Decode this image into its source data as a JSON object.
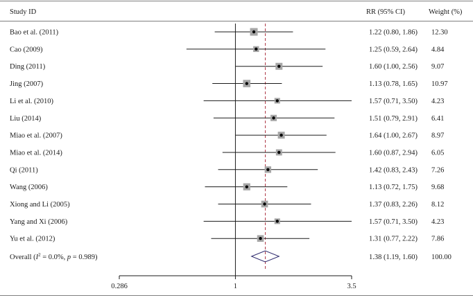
{
  "chart_data": {
    "type": "forest",
    "headers": {
      "study": "Study ID",
      "rr": "RR (95% CI)",
      "weight": "Weight (%)"
    },
    "x_scale": "log",
    "xlim": [
      0.286,
      3.5
    ],
    "x_ticks": [
      {
        "value": 0.286,
        "label": "0.286"
      },
      {
        "value": 1,
        "label": "1"
      },
      {
        "value": 3.5,
        "label": "3.5"
      }
    ],
    "null_line": 1,
    "pooled_line": 1.38,
    "studies": [
      {
        "label": "Bao et al. (2011)",
        "rr": 1.22,
        "lo": 0.8,
        "hi": 1.86,
        "rr_text": "1.22 (0.80, 1.86)",
        "weight": 12.3,
        "weight_text": "12.30"
      },
      {
        "label": "Cao (2009)",
        "rr": 1.25,
        "lo": 0.59,
        "hi": 2.64,
        "rr_text": "1.25 (0.59, 2.64)",
        "weight": 4.84,
        "weight_text": "4.84"
      },
      {
        "label": "Ding (2011)",
        "rr": 1.6,
        "lo": 1.0,
        "hi": 2.56,
        "rr_text": "1.60 (1.00, 2.56)",
        "weight": 9.07,
        "weight_text": "9.07"
      },
      {
        "label": "Jing (2007)",
        "rr": 1.13,
        "lo": 0.78,
        "hi": 1.65,
        "rr_text": "1.13 (0.78, 1.65)",
        "weight": 10.97,
        "weight_text": "10.97"
      },
      {
        "label": "Li et al. (2010)",
        "rr": 1.57,
        "lo": 0.71,
        "hi": 3.5,
        "rr_text": "1.57 (0.71, 3.50)",
        "weight": 4.23,
        "weight_text": "4.23"
      },
      {
        "label": "Liu (2014)",
        "rr": 1.51,
        "lo": 0.79,
        "hi": 2.91,
        "rr_text": "1.51 (0.79, 2.91)",
        "weight": 6.41,
        "weight_text": "6.41"
      },
      {
        "label": "Miao et al. (2007)",
        "rr": 1.64,
        "lo": 1.0,
        "hi": 2.67,
        "rr_text": "1.64 (1.00, 2.67)",
        "weight": 8.97,
        "weight_text": "8.97"
      },
      {
        "label": "Miao et al. (2014)",
        "rr": 1.6,
        "lo": 0.87,
        "hi": 2.94,
        "rr_text": "1.60 (0.87, 2.94)",
        "weight": 6.05,
        "weight_text": "6.05"
      },
      {
        "label": "Qi (2011)",
        "rr": 1.42,
        "lo": 0.83,
        "hi": 2.43,
        "rr_text": "1.42 (0.83, 2.43)",
        "weight": 7.26,
        "weight_text": "7.26"
      },
      {
        "label": "Wang (2006)",
        "rr": 1.13,
        "lo": 0.72,
        "hi": 1.75,
        "rr_text": "1.13 (0.72, 1.75)",
        "weight": 9.68,
        "weight_text": "9.68"
      },
      {
        "label": "Xiong and Li (2005)",
        "rr": 1.37,
        "lo": 0.83,
        "hi": 2.26,
        "rr_text": "1.37 (0.83, 2.26)",
        "weight": 8.12,
        "weight_text": "8.12"
      },
      {
        "label": "Yang and Xi (2006)",
        "rr": 1.57,
        "lo": 0.71,
        "hi": 3.5,
        "rr_text": "1.57 (0.71, 3.50)",
        "weight": 4.23,
        "weight_text": "4.23"
      },
      {
        "label": "Yu et al. (2012)",
        "rr": 1.31,
        "lo": 0.77,
        "hi": 2.22,
        "rr_text": "1.31 (0.77, 2.22)",
        "weight": 7.86,
        "weight_text": "7.86"
      }
    ],
    "overall": {
      "label_prefix": "Overall (",
      "i2_symbol": "I",
      "i2_sup": "2",
      "i2_value": " = 0.0%, ",
      "p_symbol": "p",
      "p_value": " = 0.989)",
      "rr": 1.38,
      "lo": 1.19,
      "hi": 1.6,
      "rr_text": "1.38 (1.19, 1.60)",
      "weight_text": "100.00"
    },
    "colors": {
      "ci_line": "#1a1a1a",
      "box": "#a6a6a6",
      "point": "#000000",
      "pooled_line": "#b03a48",
      "diamond": "#2e2a6e",
      "rule": "#7f7f7f"
    }
  }
}
